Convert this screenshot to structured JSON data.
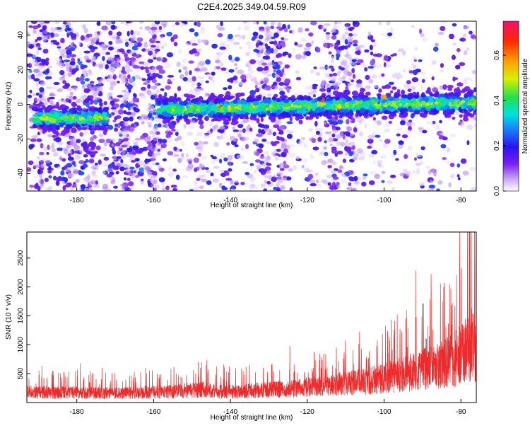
{
  "title": "C2E4.2025.349.04.59.R09",
  "chart_data": [
    {
      "type": "heatmap",
      "xlabel": "Height of straight line (km)",
      "ylabel": "Frequency (Hz)",
      "xlim": [
        -193,
        -76
      ],
      "ylim": [
        -50,
        48
      ],
      "xticks": [
        -180,
        -160,
        -140,
        -120,
        -100,
        -80
      ],
      "yticks": [
        -40,
        -20,
        0,
        20,
        40
      ],
      "colorbar": {
        "label": "Normalized spectral amplitude",
        "range": [
          0,
          0.75
        ],
        "ticks": [
          0.0,
          0.2,
          0.4,
          0.6
        ],
        "tick_labels": [
          "0.0",
          "0.2",
          "0.4",
          "0.6"
        ]
      },
      "signal_track": {
        "segments": [
          {
            "x_start": -191,
            "x_end": -172,
            "frequency": -8
          },
          {
            "x_start": -159,
            "x_end": -76,
            "frequency_start": -3,
            "frequency_end": 1
          }
        ]
      },
      "grid": false
    },
    {
      "type": "line",
      "xlabel": "Height of straight line (km)",
      "ylabel": "SNR (10 * v/v)",
      "xlim": [
        -193,
        -76
      ],
      "ylim": [
        0,
        2950
      ],
      "xticks": [
        -180,
        -160,
        -140,
        -120,
        -100,
        -80
      ],
      "yticks": [
        500,
        1000,
        1500,
        2000,
        2500
      ],
      "color": "#ee2a2a",
      "envelope": {
        "x": [
          -193,
          -185,
          -180,
          -170,
          -160,
          -155,
          -150,
          -146,
          -144,
          -140,
          -130,
          -125,
          -120,
          -115,
          -110,
          -105,
          -100,
          -95,
          -90,
          -85,
          -82,
          -80,
          -78,
          -77,
          -76
        ],
        "y": [
          260,
          240,
          250,
          230,
          250,
          270,
          300,
          330,
          280,
          270,
          310,
          340,
          380,
          420,
          480,
          530,
          600,
          700,
          820,
          950,
          1050,
          1200,
          1350,
          1500,
          1300
        ]
      },
      "grid": false
    }
  ]
}
